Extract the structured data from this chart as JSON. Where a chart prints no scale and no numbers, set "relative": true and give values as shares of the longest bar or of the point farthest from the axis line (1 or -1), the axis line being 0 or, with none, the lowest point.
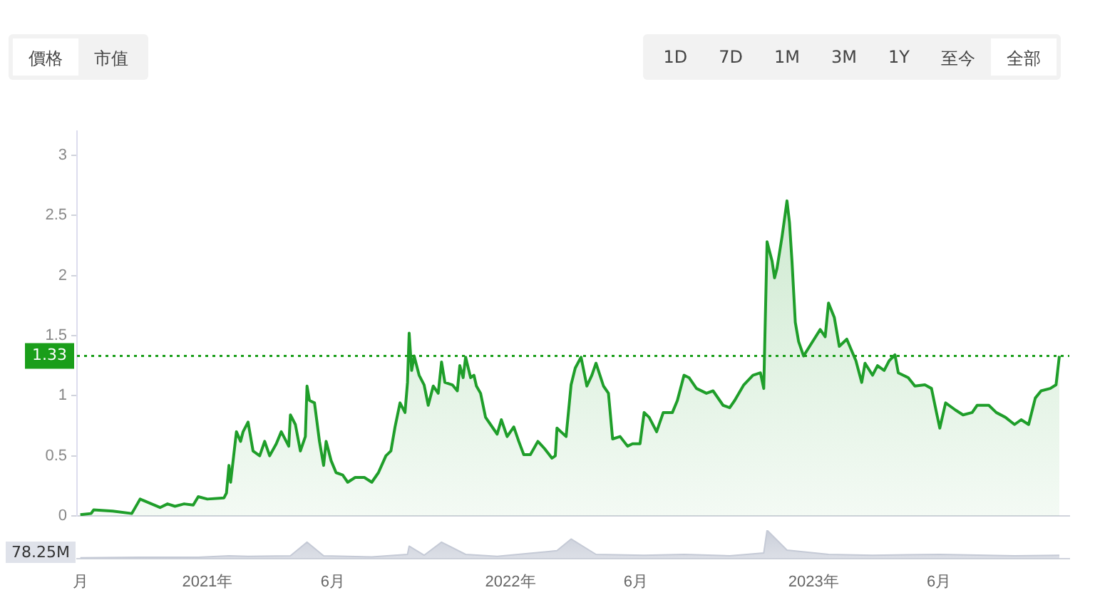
{
  "chart_data": [
    {
      "type": "area",
      "grid": false,
      "legend": false,
      "marker": "none",
      "annotations": [
        "價格",
        "市值",
        "1D",
        "7D",
        "1M",
        "3M",
        "1Y",
        "至今",
        "全部"
      ],
      "xlim": [
        "2020-07-28",
        "2023-11-05"
      ],
      "ylim": [
        0,
        3.2
      ],
      "xticks": [
        {
          "value": "2020-08-01",
          "label": "月"
        },
        {
          "value": "2021-01-01",
          "label": "2021年"
        },
        {
          "value": "2021-06-01",
          "label": "6月"
        },
        {
          "value": "2022-01-01",
          "label": "2022年"
        },
        {
          "value": "2022-06-01",
          "label": "6月"
        },
        {
          "value": "2023-01-01",
          "label": "2023年"
        },
        {
          "value": "2023-06-01",
          "label": "6月"
        }
      ],
      "yticks": [
        0,
        0.5,
        1,
        1.5,
        2,
        2.5,
        3
      ],
      "ref_lines": [
        {
          "axis": "y",
          "value": 1.33,
          "label": "1.33",
          "color": "#1a9e1a",
          "line_style": "dotted"
        }
      ],
      "series": [
        {
          "color": "#1f9e2a",
          "x": [
            "2020-08-01",
            "2020-08-14",
            "2020-08-17",
            "2020-09-09",
            "2020-10-02",
            "2020-10-12",
            "2020-11-05",
            "2020-11-14",
            "2020-11-23",
            "2020-12-04",
            "2020-12-15",
            "2020-12-21",
            "2021-01-01",
            "2021-01-21",
            "2021-01-24",
            "2021-01-27",
            "2021-01-29",
            "2021-02-05",
            "2021-02-10",
            "2021-02-13",
            "2021-02-19",
            "2021-02-25",
            "2021-03-05",
            "2021-03-11",
            "2021-03-17",
            "2021-03-25",
            "2021-03-31",
            "2021-04-09",
            "2021-04-11",
            "2021-04-17",
            "2021-04-23",
            "2021-04-29",
            "2021-05-01",
            "2021-05-04",
            "2021-05-10",
            "2021-05-16",
            "2021-05-21",
            "2021-05-24",
            "2021-05-30",
            "2021-06-05",
            "2021-06-13",
            "2021-06-19",
            "2021-06-28",
            "2021-07-09",
            "2021-07-18",
            "2021-07-26",
            "2021-08-04",
            "2021-08-10",
            "2021-08-15",
            "2021-08-21",
            "2021-08-27",
            "2021-08-30",
            "2021-09-01",
            "2021-09-04",
            "2021-09-07",
            "2021-09-13",
            "2021-09-19",
            "2021-09-24",
            "2021-09-30",
            "2021-10-06",
            "2021-10-10",
            "2021-10-14",
            "2021-10-23",
            "2021-10-29",
            "2021-11-01",
            "2021-11-05",
            "2021-11-08",
            "2021-11-14",
            "2021-11-18",
            "2021-11-21",
            "2021-11-26",
            "2021-12-02",
            "2021-12-08",
            "2021-12-16",
            "2021-12-21",
            "2021-12-28",
            "2022-01-05",
            "2022-01-11",
            "2022-01-17",
            "2022-01-25",
            "2022-02-03",
            "2022-02-11",
            "2022-02-20",
            "2022-02-24",
            "2022-02-26",
            "2022-03-09",
            "2022-03-15",
            "2022-03-20",
            "2022-03-27",
            "2022-04-03",
            "2022-04-09",
            "2022-04-14",
            "2022-04-23",
            "2022-04-29",
            "2022-05-04",
            "2022-05-13",
            "2022-05-22",
            "2022-05-28",
            "2022-06-06",
            "2022-06-11",
            "2022-06-17",
            "2022-06-26",
            "2022-07-04",
            "2022-07-15",
            "2022-07-21",
            "2022-07-29",
            "2022-08-04",
            "2022-08-13",
            "2022-08-25",
            "2022-09-02",
            "2022-09-14",
            "2022-09-22",
            "2022-09-28",
            "2022-10-09",
            "2022-10-20",
            "2022-10-29",
            "2022-11-02",
            "2022-11-06",
            "2022-11-12",
            "2022-11-15",
            "2022-11-18",
            "2022-11-24",
            "2022-11-30",
            "2022-12-03",
            "2022-12-06",
            "2022-12-10",
            "2022-12-14",
            "2022-12-20",
            "2022-12-29",
            "2023-01-09",
            "2023-01-15",
            "2023-01-19",
            "2023-01-26",
            "2023-02-01",
            "2023-02-10",
            "2023-02-21",
            "2023-02-28",
            "2023-03-04",
            "2023-03-13",
            "2023-03-19",
            "2023-03-27",
            "2023-04-02",
            "2023-04-09",
            "2023-04-13",
            "2023-04-25",
            "2023-05-03",
            "2023-05-15",
            "2023-05-23",
            "2023-05-29",
            "2023-06-02",
            "2023-06-09",
            "2023-06-21",
            "2023-06-30",
            "2023-07-11",
            "2023-07-17",
            "2023-07-31",
            "2023-08-09",
            "2023-08-20",
            "2023-08-31",
            "2023-09-08",
            "2023-09-17",
            "2023-09-25",
            "2023-10-02",
            "2023-10-13",
            "2023-10-20",
            "2023-10-24"
          ],
          "values": [
            0.01,
            0.02,
            0.05,
            0.04,
            0.02,
            0.14,
            0.07,
            0.1,
            0.08,
            0.1,
            0.09,
            0.16,
            0.14,
            0.15,
            0.19,
            0.42,
            0.28,
            0.7,
            0.62,
            0.7,
            0.78,
            0.54,
            0.5,
            0.62,
            0.5,
            0.6,
            0.7,
            0.58,
            0.84,
            0.76,
            0.54,
            0.66,
            1.08,
            0.96,
            0.94,
            0.62,
            0.42,
            0.62,
            0.46,
            0.36,
            0.34,
            0.28,
            0.32,
            0.32,
            0.28,
            0.36,
            0.5,
            0.54,
            0.74,
            0.94,
            0.86,
            1.11,
            1.52,
            1.21,
            1.33,
            1.17,
            1.09,
            0.92,
            1.08,
            1.02,
            1.28,
            1.11,
            1.09,
            1.04,
            1.25,
            1.15,
            1.32,
            1.15,
            1.17,
            1.08,
            1.02,
            0.82,
            0.76,
            0.68,
            0.8,
            0.66,
            0.74,
            0.62,
            0.51,
            0.51,
            0.62,
            0.56,
            0.48,
            0.5,
            0.73,
            0.66,
            1.09,
            1.23,
            1.32,
            1.08,
            1.17,
            1.27,
            1.08,
            1.02,
            0.64,
            0.66,
            0.58,
            0.6,
            0.6,
            0.86,
            0.82,
            0.7,
            0.86,
            0.86,
            0.96,
            1.17,
            1.15,
            1.06,
            1.02,
            1.04,
            0.92,
            0.9,
            0.96,
            1.09,
            1.17,
            1.19,
            1.06,
            2.28,
            2.12,
            1.98,
            2.06,
            2.32,
            2.62,
            2.44,
            2.12,
            1.61,
            1.45,
            1.33,
            1.43,
            1.55,
            1.49,
            1.77,
            1.65,
            1.41,
            1.47,
            1.29,
            1.11,
            1.27,
            1.17,
            1.25,
            1.21,
            1.29,
            1.34,
            1.19,
            1.15,
            1.08,
            1.09,
            1.06,
            0.86,
            0.73,
            0.94,
            0.88,
            0.84,
            0.86,
            0.92,
            0.92,
            0.86,
            0.82,
            0.76,
            0.8,
            0.76,
            0.98,
            1.04,
            1.06,
            1.09,
            1.33
          ]
        }
      ]
    },
    {
      "type": "area",
      "relative": true,
      "grid": false,
      "legend": false,
      "marker": "none",
      "annotations": [
        "78.25M"
      ],
      "xlim": [
        "2020-07-28",
        "2023-11-05"
      ],
      "series": [
        {
          "color": "#c5cad6",
          "x": [
            "2020-08-01",
            "2020-10-12",
            "2020-12-21",
            "2021-01-27",
            "2021-02-19",
            "2021-04-11",
            "2021-05-01",
            "2021-05-21",
            "2021-07-18",
            "2021-08-30",
            "2021-09-01",
            "2021-09-19",
            "2021-10-10",
            "2021-11-08",
            "2021-12-16",
            "2022-02-26",
            "2022-03-15",
            "2022-04-14",
            "2022-06-11",
            "2022-07-29",
            "2022-09-22",
            "2022-11-02",
            "2022-11-06",
            "2022-11-30",
            "2023-01-19",
            "2023-03-13",
            "2023-06-02",
            "2023-08-31",
            "2023-10-24"
          ],
          "values": [
            0.03,
            0.05,
            0.05,
            0.1,
            0.08,
            0.1,
            0.58,
            0.1,
            0.06,
            0.15,
            0.44,
            0.12,
            0.58,
            0.15,
            0.08,
            0.28,
            0.69,
            0.15,
            0.12,
            0.15,
            0.1,
            0.2,
            1,
            0.3,
            0.15,
            0.12,
            0.15,
            0.1,
            0.12
          ]
        }
      ]
    }
  ]
}
